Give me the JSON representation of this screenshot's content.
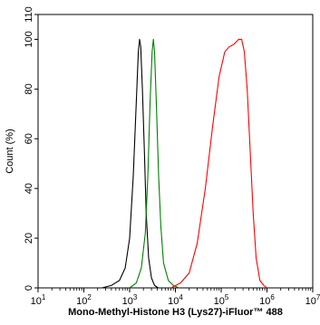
{
  "chart_data": {
    "type": "line",
    "xlabel": "Mono-Methyl-Histone H3 (Lys27)-iFluor™ 488",
    "ylabel": "Count  (%)",
    "xscale": "log",
    "xlim": [
      10,
      10000000
    ],
    "ylim": [
      0,
      110
    ],
    "grid": false,
    "legend": "none",
    "yticks": [
      {
        "value": 0,
        "label": "0"
      },
      {
        "value": 20,
        "label": "20"
      },
      {
        "value": 40,
        "label": "40"
      },
      {
        "value": 60,
        "label": "60"
      },
      {
        "value": 80,
        "label": "80"
      },
      {
        "value": 100,
        "label": "100"
      },
      {
        "value": 110,
        "label": "110"
      }
    ],
    "xticks": [
      {
        "value": 10,
        "base": "10",
        "exp": "1"
      },
      {
        "value": 100,
        "base": "10",
        "exp": "2"
      },
      {
        "value": 1000,
        "base": "10",
        "exp": "3"
      },
      {
        "value": 10000,
        "base": "10",
        "exp": "4"
      },
      {
        "value": 100000,
        "base": "10",
        "exp": "5"
      },
      {
        "value": 1000000,
        "base": "10",
        "exp": "6"
      },
      {
        "value": 10000000,
        "base": "10",
        "exp": "7"
      }
    ],
    "series": [
      {
        "color": "#000000",
        "points": [
          [
            250,
            0
          ],
          [
            400,
            1
          ],
          [
            600,
            3
          ],
          [
            800,
            8
          ],
          [
            1000,
            20
          ],
          [
            1200,
            45
          ],
          [
            1400,
            75
          ],
          [
            1550,
            95
          ],
          [
            1650,
            100
          ],
          [
            1750,
            97
          ],
          [
            1900,
            80
          ],
          [
            2100,
            55
          ],
          [
            2300,
            30
          ],
          [
            2600,
            12
          ],
          [
            3000,
            4
          ],
          [
            3500,
            1
          ],
          [
            4200,
            0
          ]
        ]
      },
      {
        "color": "#008000",
        "points": [
          [
            1000,
            0
          ],
          [
            1400,
            2
          ],
          [
            1800,
            8
          ],
          [
            2200,
            22
          ],
          [
            2500,
            45
          ],
          [
            2800,
            75
          ],
          [
            3100,
            95
          ],
          [
            3300,
            100
          ],
          [
            3500,
            95
          ],
          [
            3900,
            70
          ],
          [
            4300,
            45
          ],
          [
            4800,
            25
          ],
          [
            5500,
            10
          ],
          [
            7000,
            3
          ],
          [
            9000,
            1
          ],
          [
            12000,
            0
          ]
        ]
      },
      {
        "color": "#ff0000",
        "points": [
          [
            8000,
            0
          ],
          [
            13000,
            2
          ],
          [
            20000,
            6
          ],
          [
            30000,
            18
          ],
          [
            45000,
            40
          ],
          [
            65000,
            65
          ],
          [
            90000,
            85
          ],
          [
            120000,
            95
          ],
          [
            150000,
            97
          ],
          [
            190000,
            98
          ],
          [
            240000,
            100
          ],
          [
            280000,
            100
          ],
          [
            320000,
            95
          ],
          [
            370000,
            80
          ],
          [
            430000,
            55
          ],
          [
            500000,
            30
          ],
          [
            580000,
            12
          ],
          [
            700000,
            3
          ],
          [
            850000,
            1
          ],
          [
            1000000,
            0
          ]
        ]
      }
    ]
  }
}
